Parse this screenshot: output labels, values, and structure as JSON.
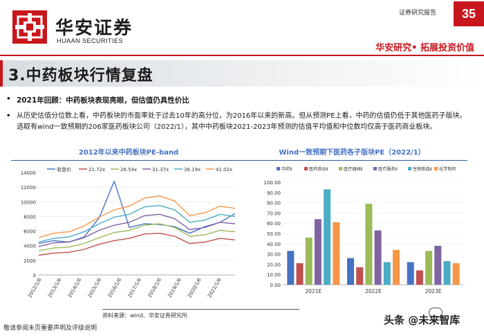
{
  "header": {
    "brand_cn": "华安证券",
    "brand_en": "HUAAN SECURITIES",
    "report_type": "证券研究报告",
    "page_number": "35",
    "slogan": "华安研究• 拓展投资价值",
    "brand_color": "#c8161d"
  },
  "section_title": "3.中药板块行情复盘",
  "bullets": {
    "b1": "2021年回顾：中药板块表现亮眼，但估值仍具性价比",
    "b2": "从历史估值分位数上看，中药板块的市盈率处于过去10年的高分位，为2016年以来的新高。但从预测PE上看，中药的估值仍低于其他医药子版块。选取有wind一致预期的206家医药板块公司（2022/1），其中中药板块2021-2023年预测的估值平均值和中位数均仅高于医药商业板块。"
  },
  "chart_data": [
    {
      "type": "line",
      "title": "2012年以来中药板块PE-band",
      "ylim": [
        0,
        14000
      ],
      "yticks": [
        "0",
        "2000",
        "4000",
        "6000",
        "8000",
        "10000",
        "12000",
        "14000"
      ],
      "xticks": [
        "2012/1/6",
        "2013/1/6",
        "2014/1/6",
        "2015/1/6",
        "2016/1/6",
        "2017/1/6",
        "2018/1/6",
        "2019/1/6",
        "2020/1/6",
        "2021/1/6"
      ],
      "legend": [
        "收盘价",
        "21.72x",
        "26.54x",
        "31.37x",
        "36.19x",
        "41.02x"
      ],
      "colors": [
        "#4472c4",
        "#c0504d",
        "#9bbb59",
        "#8064a2",
        "#4bacc6",
        "#f79646"
      ],
      "series": [
        {
          "name": "收盘价",
          "values": [
            4300,
            4700,
            4500,
            5200,
            7800,
            12800,
            6500,
            7000,
            6900,
            6600,
            5700,
            6600,
            7200,
            8400
          ]
        },
        {
          "name": "21.72x",
          "values": [
            2700,
            3000,
            3100,
            3500,
            4200,
            4700,
            5000,
            5600,
            5700,
            5300,
            4300,
            4500,
            5000,
            4800
          ]
        },
        {
          "name": "26.54x",
          "values": [
            3300,
            3700,
            3800,
            4300,
            5100,
            5800,
            6100,
            6800,
            7000,
            6500,
            5300,
            5500,
            6100,
            5900
          ]
        },
        {
          "name": "31.37x",
          "values": [
            3900,
            4400,
            4500,
            5100,
            6100,
            6800,
            7200,
            8100,
            8300,
            7700,
            6200,
            6500,
            7200,
            7000
          ]
        },
        {
          "name": "36.19x",
          "values": [
            4500,
            5000,
            5200,
            5900,
            7000,
            7900,
            8300,
            9300,
            9500,
            8900,
            7200,
            7500,
            8300,
            8000
          ]
        },
        {
          "name": "41.02x",
          "values": [
            5100,
            5700,
            5900,
            6700,
            7900,
            8900,
            9400,
            10500,
            10800,
            10100,
            8100,
            8500,
            9400,
            9100
          ]
        }
      ]
    },
    {
      "type": "bar",
      "title": "Wind一致预期下医药各子版块PE（2022/1）",
      "categories": [
        "2021E",
        "2022E",
        "2023E"
      ],
      "ylim": [
        0,
        100
      ],
      "yticks": [
        "0.00",
        "10.00",
        "20.00",
        "30.00",
        "40.00",
        "50.00",
        "60.00",
        "70.00",
        "80.00",
        "90.00",
        "100.00"
      ],
      "series": [
        {
          "name": "中药Ⅱ",
          "color": "#4472c4",
          "values": [
            33,
            26,
            22
          ]
        },
        {
          "name": "医药商业Ⅱ",
          "color": "#c0504d",
          "values": [
            21,
            17,
            14
          ]
        },
        {
          "name": "医疗器械Ⅱ",
          "color": "#9bbb59",
          "values": [
            46,
            79,
            33
          ]
        },
        {
          "name": "医疗服务Ⅱ",
          "color": "#8064a2",
          "values": [
            64,
            53,
            38
          ]
        },
        {
          "name": "生物制品Ⅱ",
          "color": "#4bacc6",
          "values": [
            93,
            22,
            23
          ]
        },
        {
          "name": "化学制药",
          "color": "#f79646",
          "values": [
            61,
            34,
            21
          ]
        }
      ]
    }
  ],
  "footer": {
    "source": "资料来源：wind、华安证券研究所",
    "disclaimer": "敬请参阅末页重要声明及评级说明",
    "watermark": "头条 @未来智库"
  }
}
